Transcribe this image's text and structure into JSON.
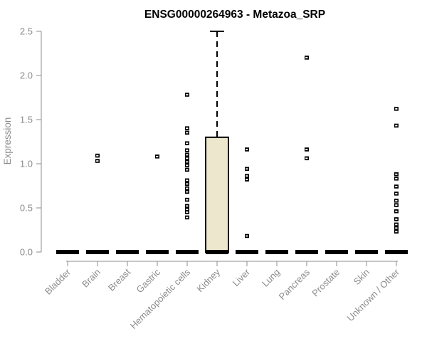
{
  "colors": {
    "background": "#ffffff",
    "title": "#000000",
    "axis": "#8c8c8c",
    "axis_text": "#8c8c8c",
    "box_fill": "#ece7cd",
    "box_stroke": "#000000",
    "outlier": "#000000",
    "outlier_slit": "#ffffff"
  },
  "chart_data": {
    "type": "boxplot",
    "title": "ENSG00000264963 - Metazoa_SRP",
    "xlabel": "",
    "ylabel": "Expression",
    "ylim": [
      0,
      2.5
    ],
    "yticks": [
      0,
      0.5,
      1,
      1.5,
      2,
      2.5
    ],
    "ytick_labels": [
      "0.0",
      "0.5",
      "1.0",
      "1.5",
      "2.0",
      "2.5"
    ],
    "grid": false,
    "legend": "none",
    "categories": [
      "Bladder",
      "Brain",
      "Breast",
      "Gastric",
      "Hematopoietic cells",
      "Kidney",
      "Liver",
      "Lung",
      "Pancreas",
      "Prostate",
      "Skin",
      "Unknown / Other"
    ],
    "boxes": [
      {
        "category": "Bladder",
        "whisker_low": 0,
        "q1": 0,
        "median": 0,
        "q3": 0,
        "whisker_high": 0,
        "outliers": []
      },
      {
        "category": "Brain",
        "whisker_low": 0,
        "q1": 0,
        "median": 0,
        "q3": 0,
        "whisker_high": 0,
        "outliers": [
          1.09,
          1.03
        ]
      },
      {
        "category": "Breast",
        "whisker_low": 0,
        "q1": 0,
        "median": 0,
        "q3": 0,
        "whisker_high": 0,
        "outliers": []
      },
      {
        "category": "Gastric",
        "whisker_low": 0,
        "q1": 0,
        "median": 0,
        "q3": 0,
        "whisker_high": 0,
        "outliers": [
          1.08
        ]
      },
      {
        "category": "Hematopoietic cells",
        "whisker_low": 0,
        "q1": 0,
        "median": 0,
        "q3": 0,
        "whisker_high": 0,
        "outliers": [
          1.78,
          1.4,
          1.35,
          1.23,
          1.15,
          1.1,
          1.06,
          1.02,
          0.98,
          0.93,
          0.81,
          0.77,
          0.72,
          0.68,
          0.59,
          0.52,
          0.48,
          0.45,
          0.39
        ]
      },
      {
        "category": "Kidney",
        "whisker_low": 0,
        "q1": 0,
        "median": 0,
        "q3": 1.3,
        "whisker_high": 2.5,
        "outliers": []
      },
      {
        "category": "Liver",
        "whisker_low": 0,
        "q1": 0,
        "median": 0,
        "q3": 0,
        "whisker_high": 0,
        "outliers": [
          1.16,
          0.94,
          0.86,
          0.82,
          0.18
        ]
      },
      {
        "category": "Lung",
        "whisker_low": 0,
        "q1": 0,
        "median": 0,
        "q3": 0,
        "whisker_high": 0,
        "outliers": []
      },
      {
        "category": "Pancreas",
        "whisker_low": 0,
        "q1": 0,
        "median": 0,
        "q3": 0,
        "whisker_high": 0,
        "outliers": [
          2.2,
          1.16,
          1.06
        ]
      },
      {
        "category": "Prostate",
        "whisker_low": 0,
        "q1": 0,
        "median": 0,
        "q3": 0,
        "whisker_high": 0,
        "outliers": []
      },
      {
        "category": "Skin",
        "whisker_low": 0,
        "q1": 0,
        "median": 0,
        "q3": 0,
        "whisker_high": 0,
        "outliers": []
      },
      {
        "category": "Unknown / Other",
        "whisker_low": 0,
        "q1": 0,
        "median": 0,
        "q3": 0,
        "whisker_high": 0,
        "outliers": [
          1.62,
          1.43,
          0.88,
          0.83,
          0.74,
          0.66,
          0.58,
          0.53,
          0.46,
          0.37,
          0.31,
          0.27,
          0.23
        ]
      }
    ]
  }
}
